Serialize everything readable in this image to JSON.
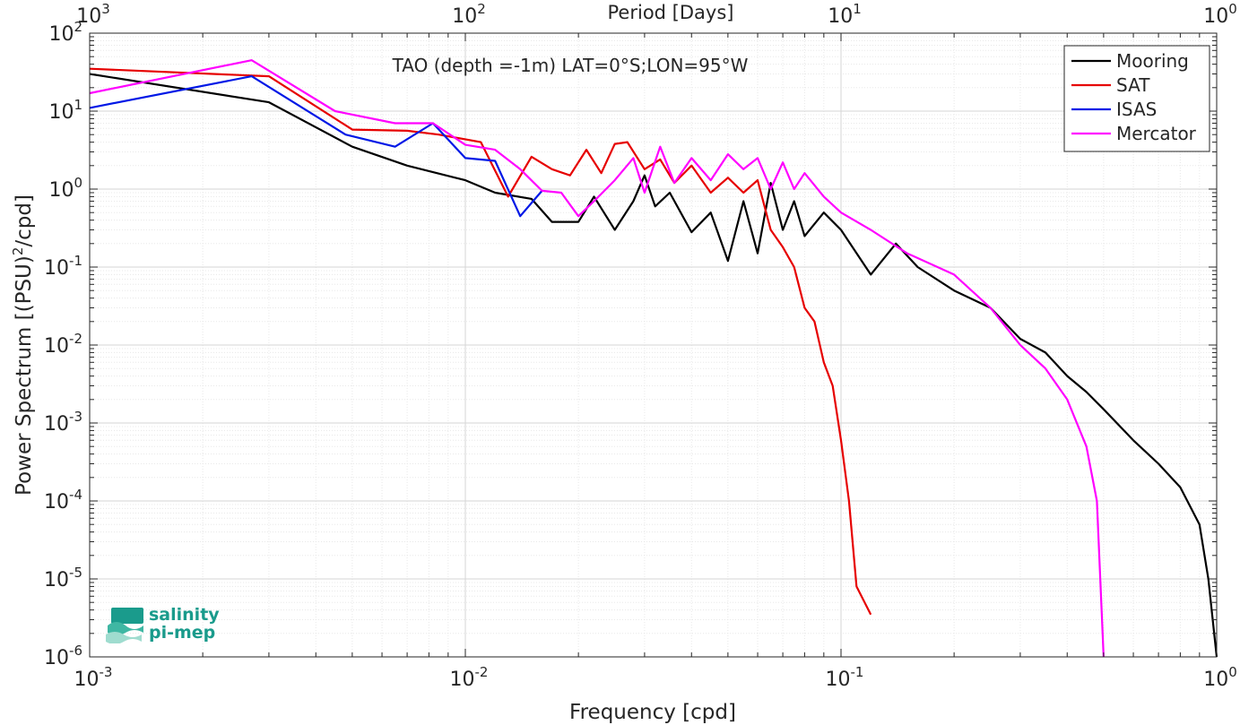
{
  "chart_data": {
    "type": "line",
    "title": "TAO (depth =-1m) LAT=0°S;LON=95°W",
    "xlabel": "Frequency [cpd]",
    "ylabel_main": "Power Spectrum [(PSU)",
    "ylabel_sup": "2",
    "ylabel_tail": "/cpd]",
    "top_xlabel": "Period [Days]",
    "x_scale": "log",
    "y_scale": "log",
    "xlim": [
      0.001,
      1
    ],
    "ylim": [
      1e-06,
      100
    ],
    "grid": true,
    "legend_position": "top-right",
    "x_ticks": [
      {
        "value": 0.001,
        "base": "10",
        "exp": "-3"
      },
      {
        "value": 0.01,
        "base": "10",
        "exp": "-2"
      },
      {
        "value": 0.1,
        "base": "10",
        "exp": "-1"
      },
      {
        "value": 1,
        "base": "10",
        "exp": "0"
      }
    ],
    "top_ticks": [
      {
        "value": 0.001,
        "base": "10",
        "exp": "3"
      },
      {
        "value": 0.01,
        "base": "10",
        "exp": "2"
      },
      {
        "value": 0.1,
        "base": "10",
        "exp": "1"
      },
      {
        "value": 1,
        "base": "10",
        "exp": "0"
      }
    ],
    "y_ticks": [
      {
        "value": 100,
        "base": "10",
        "exp": "2"
      },
      {
        "value": 10,
        "base": "10",
        "exp": "1"
      },
      {
        "value": 1,
        "base": "10",
        "exp": "0"
      },
      {
        "value": 0.1,
        "base": "10",
        "exp": "-1"
      },
      {
        "value": 0.01,
        "base": "10",
        "exp": "-2"
      },
      {
        "value": 0.001,
        "base": "10",
        "exp": "-3"
      },
      {
        "value": 0.0001,
        "base": "10",
        "exp": "-4"
      },
      {
        "value": 1e-05,
        "base": "10",
        "exp": "-5"
      },
      {
        "value": 1e-06,
        "base": "10",
        "exp": "-6"
      }
    ],
    "series": [
      {
        "name": "Mooring",
        "color": "#000000",
        "x": [
          0.001,
          0.003,
          0.005,
          0.007,
          0.01,
          0.012,
          0.015,
          0.017,
          0.02,
          0.022,
          0.025,
          0.028,
          0.03,
          0.032,
          0.035,
          0.04,
          0.045,
          0.05,
          0.055,
          0.06,
          0.065,
          0.07,
          0.075,
          0.08,
          0.09,
          0.1,
          0.12,
          0.14,
          0.16,
          0.2,
          0.25,
          0.3,
          0.35,
          0.4,
          0.45,
          0.5,
          0.6,
          0.7,
          0.8,
          0.9,
          0.95,
          1.0
        ],
        "y": [
          30,
          13,
          3.5,
          2.0,
          1.3,
          0.9,
          0.75,
          0.38,
          0.38,
          0.8,
          0.3,
          0.7,
          1.5,
          0.6,
          0.9,
          0.28,
          0.5,
          0.12,
          0.7,
          0.15,
          1.2,
          0.3,
          0.7,
          0.25,
          0.5,
          0.3,
          0.08,
          0.2,
          0.1,
          0.05,
          0.03,
          0.012,
          0.008,
          0.004,
          0.0025,
          0.0015,
          0.0006,
          0.0003,
          0.00015,
          5e-05,
          1e-05,
          1e-06
        ]
      },
      {
        "name": "SAT",
        "color": "#e60000",
        "x": [
          0.001,
          0.003,
          0.005,
          0.007,
          0.0085,
          0.011,
          0.013,
          0.015,
          0.017,
          0.019,
          0.021,
          0.023,
          0.025,
          0.027,
          0.03,
          0.033,
          0.036,
          0.04,
          0.045,
          0.05,
          0.055,
          0.06,
          0.065,
          0.07,
          0.075,
          0.08,
          0.085,
          0.09,
          0.095,
          0.1,
          0.105,
          0.11,
          0.12
        ],
        "y": [
          35,
          28,
          5.8,
          5.6,
          5.0,
          4.0,
          0.8,
          2.6,
          1.8,
          1.5,
          3.2,
          1.6,
          3.8,
          4.0,
          1.8,
          2.4,
          1.2,
          2.0,
          0.9,
          1.4,
          0.9,
          1.3,
          0.3,
          0.18,
          0.1,
          0.03,
          0.02,
          0.006,
          0.003,
          0.0006,
          0.0001,
          8e-06,
          3.5e-06
        ]
      },
      {
        "name": "ISAS",
        "color": "#0018e6",
        "x": [
          0.001,
          0.0027,
          0.0048,
          0.0065,
          0.0082,
          0.01,
          0.012,
          0.014,
          0.016
        ],
        "y": [
          11,
          28,
          5.0,
          3.5,
          7.0,
          2.5,
          2.3,
          0.45,
          0.95
        ]
      },
      {
        "name": "Mercator",
        "color": "#ff00ff",
        "x": [
          0.001,
          0.0027,
          0.0045,
          0.0065,
          0.0082,
          0.01,
          0.012,
          0.014,
          0.016,
          0.018,
          0.02,
          0.022,
          0.025,
          0.028,
          0.03,
          0.033,
          0.036,
          0.04,
          0.045,
          0.05,
          0.055,
          0.06,
          0.065,
          0.07,
          0.075,
          0.08,
          0.09,
          0.1,
          0.12,
          0.15,
          0.2,
          0.25,
          0.3,
          0.35,
          0.4,
          0.45,
          0.48,
          0.5
        ],
        "y": [
          17,
          45,
          10,
          7,
          7,
          3.7,
          3.2,
          1.8,
          0.95,
          0.9,
          0.45,
          0.7,
          1.3,
          2.5,
          0.9,
          3.5,
          1.2,
          2.5,
          1.3,
          2.8,
          1.8,
          2.5,
          1.0,
          2.2,
          1.0,
          1.6,
          0.8,
          0.5,
          0.3,
          0.15,
          0.08,
          0.03,
          0.01,
          0.005,
          0.002,
          0.0005,
          0.0001,
          1e-06
        ]
      }
    ]
  },
  "logo": {
    "line1": "salinity",
    "line2": "pi-mep"
  }
}
